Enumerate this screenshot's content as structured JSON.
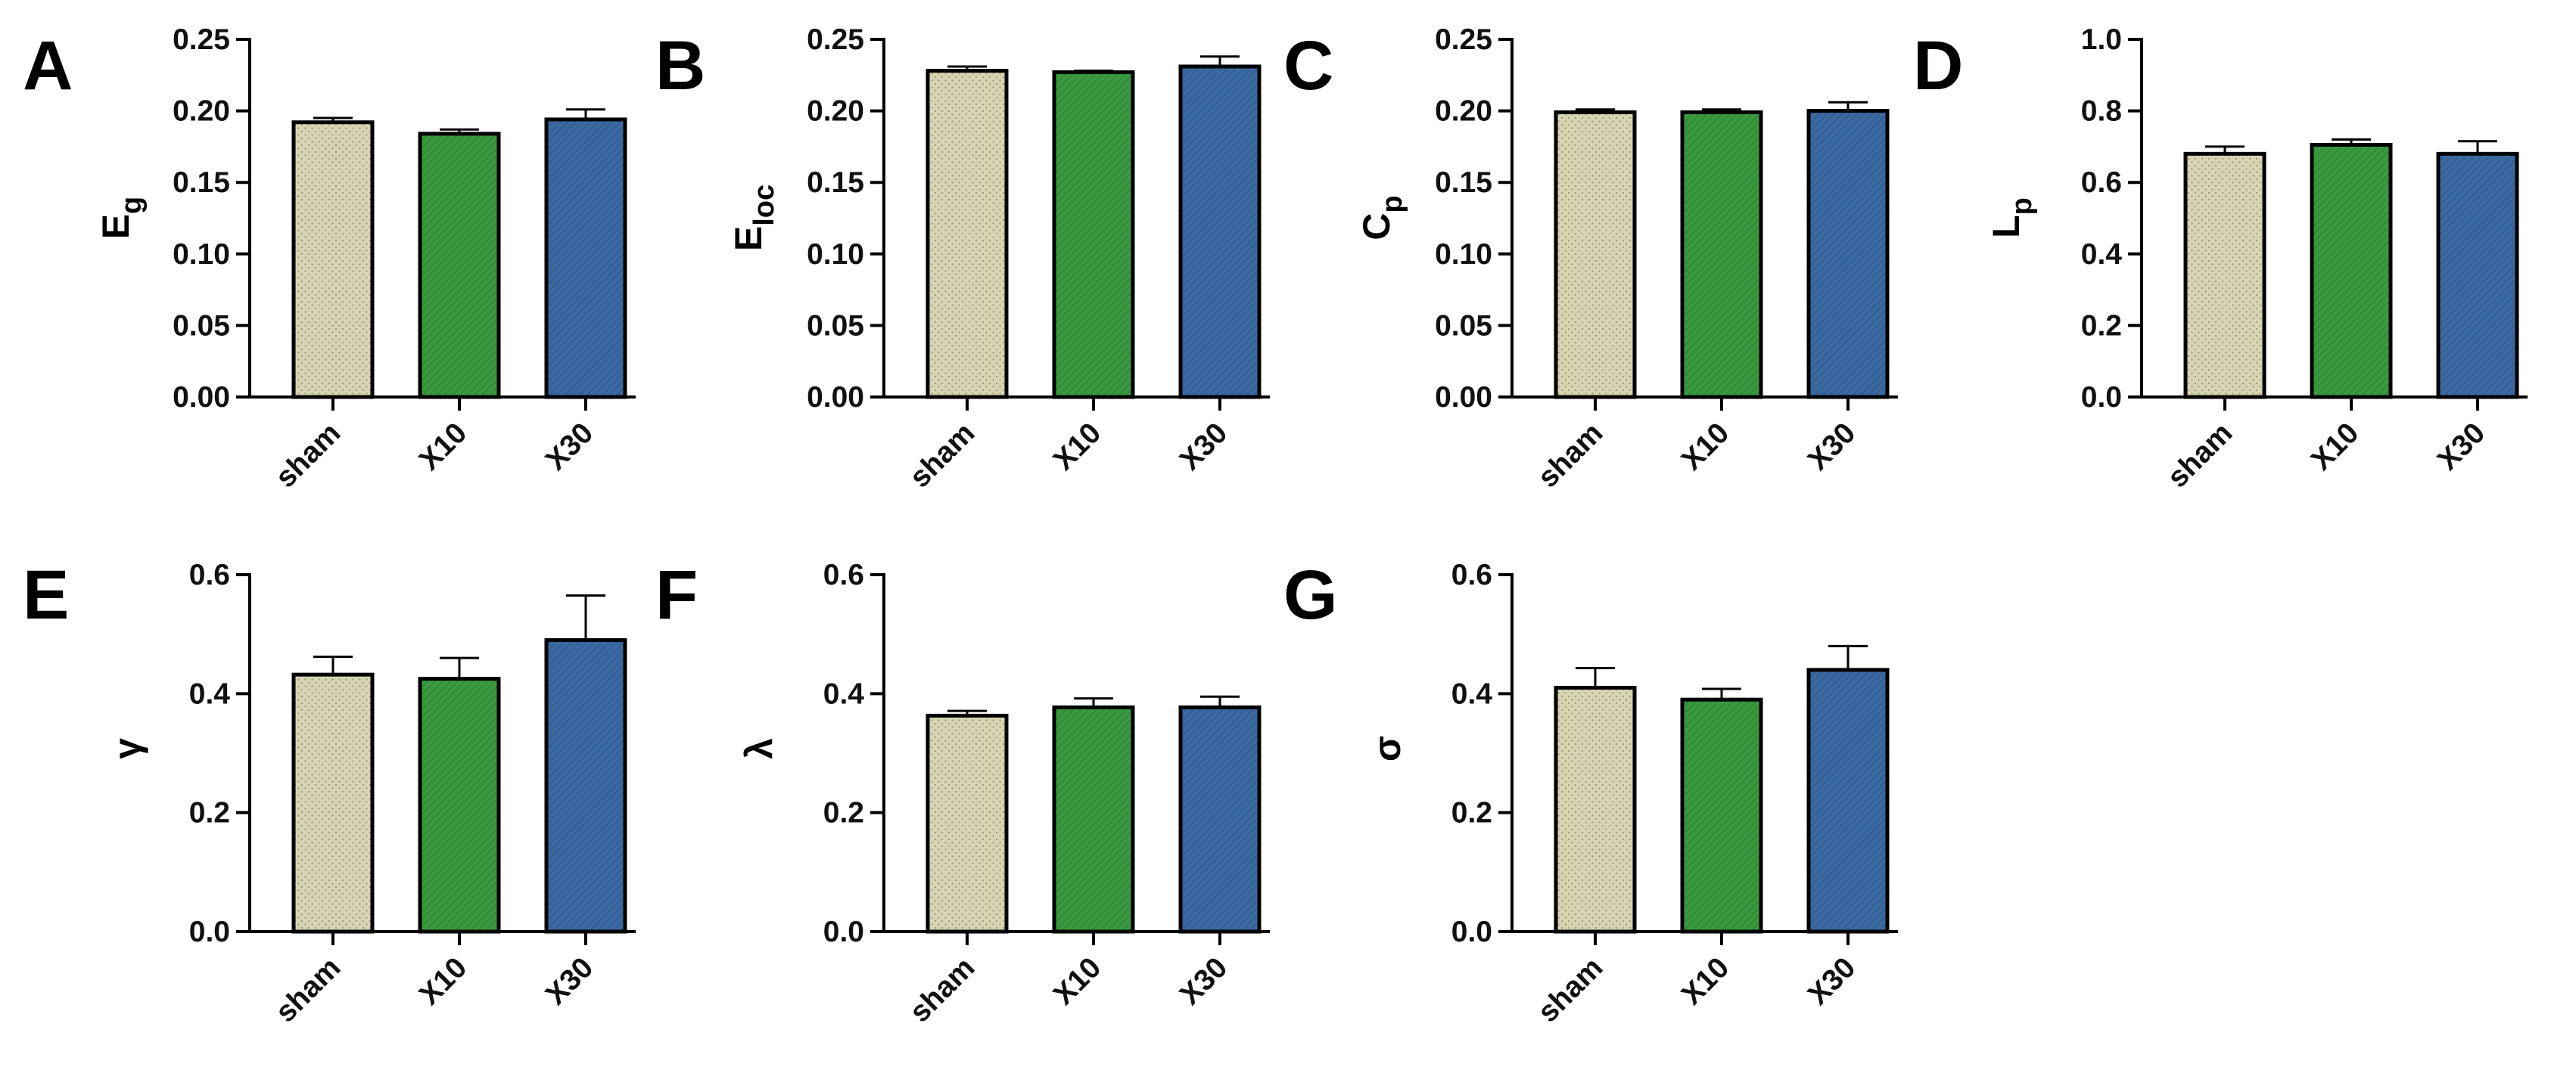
{
  "figure": {
    "colors": {
      "sham": "#d8d4b2",
      "X10": "#3a9a3f",
      "X30": "#3b69a2",
      "axis": "#111111"
    }
  },
  "chart_data": [
    {
      "panel": "A",
      "type": "bar",
      "ylabel": "E",
      "ylabel_sub": "g",
      "categories": [
        "sham",
        "X10",
        "X30"
      ],
      "values": [
        0.192,
        0.184,
        0.194
      ],
      "errors": [
        0.003,
        0.003,
        0.007
      ],
      "ylim": [
        0,
        0.25
      ],
      "yticks": [
        "0.00",
        "0.05",
        "0.10",
        "0.15",
        "0.20",
        "0.25"
      ]
    },
    {
      "panel": "B",
      "type": "bar",
      "ylabel": "E",
      "ylabel_sub": "loc",
      "categories": [
        "sham",
        "X10",
        "X30"
      ],
      "values": [
        0.228,
        0.227,
        0.231
      ],
      "errors": [
        0.003,
        0.001,
        0.007
      ],
      "ylim": [
        0,
        0.25
      ],
      "yticks": [
        "0.00",
        "0.05",
        "0.10",
        "0.15",
        "0.20",
        "0.25"
      ]
    },
    {
      "panel": "C",
      "type": "bar",
      "ylabel": "C",
      "ylabel_sub": "p",
      "categories": [
        "sham",
        "X10",
        "X30"
      ],
      "values": [
        0.199,
        0.199,
        0.2
      ],
      "errors": [
        0.002,
        0.002,
        0.006
      ],
      "ylim": [
        0,
        0.25
      ],
      "yticks": [
        "0.00",
        "0.05",
        "0.10",
        "0.15",
        "0.20",
        "0.25"
      ]
    },
    {
      "panel": "D",
      "type": "bar",
      "ylabel": "L",
      "ylabel_sub": "p",
      "categories": [
        "sham",
        "X10",
        "X30"
      ],
      "values": [
        0.68,
        0.705,
        0.68
      ],
      "errors": [
        0.02,
        0.015,
        0.035
      ],
      "ylim": [
        0,
        1.0
      ],
      "yticks": [
        "0.0",
        "0.2",
        "0.4",
        "0.6",
        "0.8",
        "1.0"
      ]
    },
    {
      "panel": "E",
      "type": "bar",
      "ylabel": "γ",
      "ylabel_sub": "",
      "categories": [
        "sham",
        "X10",
        "X30"
      ],
      "values": [
        0.432,
        0.425,
        0.49
      ],
      "errors": [
        0.03,
        0.035,
        0.075
      ],
      "ylim": [
        0,
        0.6
      ],
      "yticks": [
        "0.0",
        "0.2",
        "0.4",
        "0.6"
      ]
    },
    {
      "panel": "F",
      "type": "bar",
      "ylabel": "λ",
      "ylabel_sub": "",
      "categories": [
        "sham",
        "X10",
        "X30"
      ],
      "values": [
        0.363,
        0.377,
        0.377
      ],
      "errors": [
        0.008,
        0.015,
        0.018
      ],
      "ylim": [
        0,
        0.6
      ],
      "yticks": [
        "0.0",
        "0.2",
        "0.4",
        "0.6"
      ]
    },
    {
      "panel": "G",
      "type": "bar",
      "ylabel": "σ",
      "ylabel_sub": "",
      "categories": [
        "sham",
        "X10",
        "X30"
      ],
      "values": [
        0.41,
        0.39,
        0.44
      ],
      "errors": [
        0.033,
        0.018,
        0.04
      ],
      "ylim": [
        0,
        0.6
      ],
      "yticks": [
        "0.0",
        "0.2",
        "0.4",
        "0.6"
      ]
    }
  ]
}
